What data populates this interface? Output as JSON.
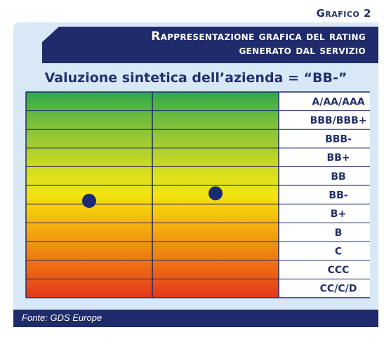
{
  "header": {
    "grafico_label": "Grafico 2",
    "title_line1": "Rappresentazione grafica del rating",
    "title_line2": "generato dal servizio"
  },
  "subtitle": "Valuzione sintetica dell’azienda = “BB-”",
  "footer": {
    "source": "Fonte: GDS Europe"
  },
  "colors": {
    "banner": "#1f2b6a",
    "panel": "#d8e8f7",
    "dot": "#1a2a78",
    "text": "#23306b"
  },
  "chart_data": {
    "type": "scatter",
    "title": "Valuzione sintetica dell’azienda = “BB-”",
    "categories": [
      "A/AA/AAA",
      "BBB/BBB+",
      "BBB-",
      "BB+",
      "BB",
      "BB-",
      "B+",
      "B",
      "C",
      "CCC",
      "CC/C/D"
    ],
    "band_colors": [
      "#2ea84a",
      "#62b83f",
      "#8ec637",
      "#b5d22c",
      "#dbe01d",
      "#f2e410",
      "#f5c20c",
      "#f2a00e",
      "#ee7d12",
      "#ea5a16",
      "#e3381a"
    ],
    "columns": 2,
    "points": [
      {
        "column": 1,
        "rating": "BB-",
        "offset": 0.82
      },
      {
        "column": 2,
        "rating": "BB-",
        "offset": 0.42
      }
    ],
    "legend": "none",
    "grid": true
  }
}
